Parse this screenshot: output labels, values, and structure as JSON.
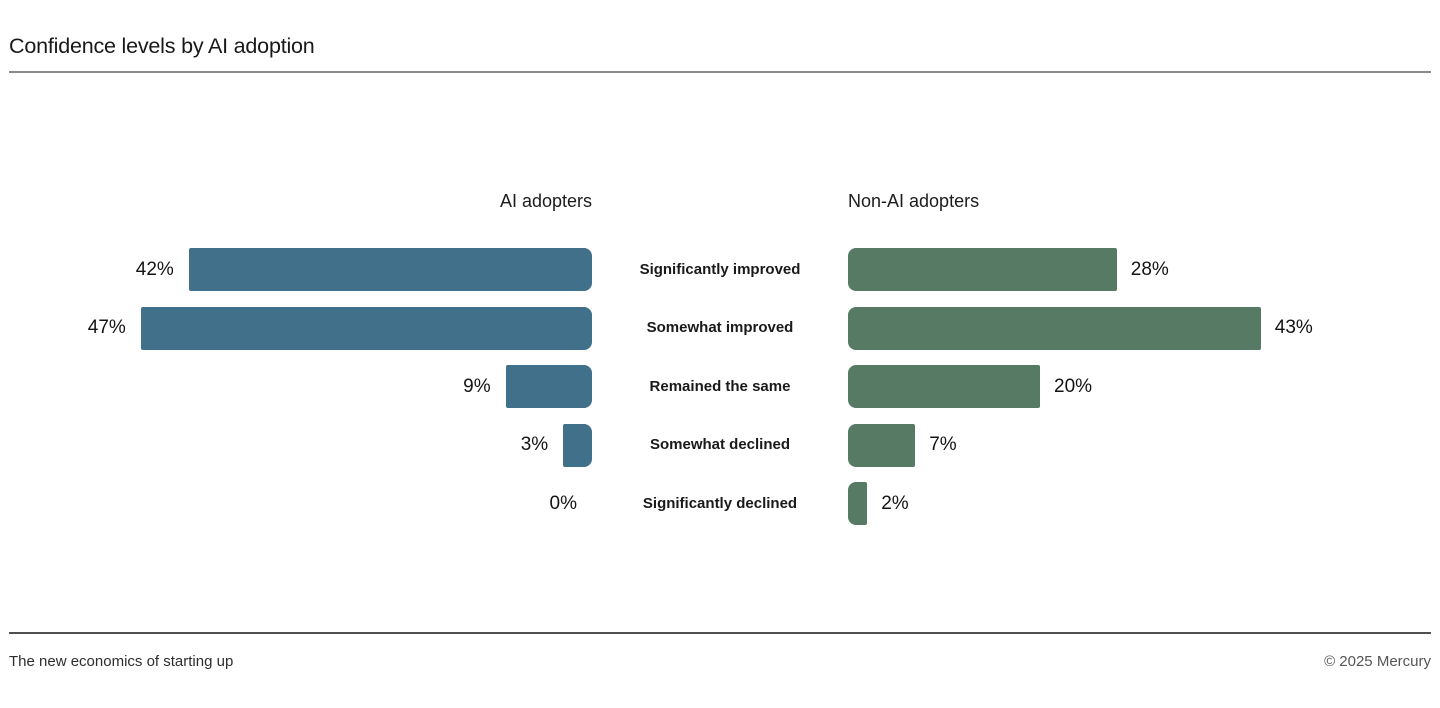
{
  "page": {
    "title": "Confidence levels by AI adoption",
    "footer_left": "The new economics of starting up",
    "footer_right": "© 2025 Mercury"
  },
  "chart_data": {
    "type": "bar",
    "orientation": "horizontal-mirrored",
    "title": "Confidence levels by AI adoption",
    "categories": [
      "Significantly improved",
      "Somewhat improved",
      "Remained the same",
      "Somewhat declined",
      "Significantly declined"
    ],
    "series": [
      {
        "name": "AI adopters",
        "side": "left",
        "color": "#41708a",
        "values": [
          42,
          47,
          9,
          3,
          0
        ]
      },
      {
        "name": "Non-AI adopters",
        "side": "right",
        "color": "#567a64",
        "values": [
          28,
          43,
          20,
          7,
          2
        ]
      }
    ],
    "value_suffix": "%",
    "xlim": [
      0,
      50
    ],
    "grid": false,
    "legend_position": "column-headers"
  }
}
